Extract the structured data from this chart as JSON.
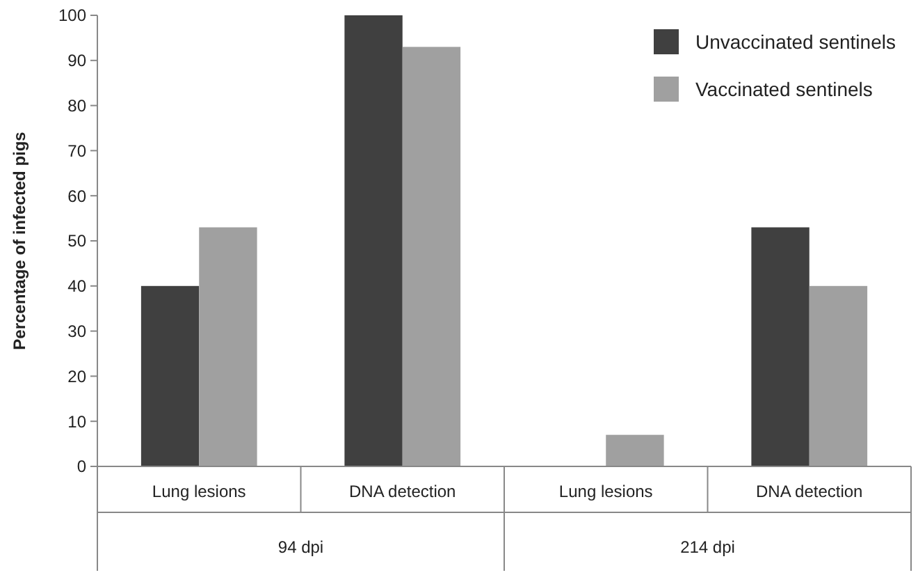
{
  "chart_data": {
    "type": "bar",
    "ylabel": "Percentage of infected pigs",
    "categories": [
      "Lung lesions",
      "DNA detection",
      "Lung lesions",
      "DNA detection"
    ],
    "series": [
      {
        "name": "Unvaccinated sentinels",
        "color": "#404040",
        "values": [
          40,
          100,
          0,
          53
        ]
      },
      {
        "name": "Vaccinated sentinels",
        "color": "#a0a0a0",
        "values": [
          53,
          93,
          7,
          40
        ]
      }
    ],
    "ylim": [
      0,
      100
    ],
    "yticks": [
      0,
      10,
      20,
      30,
      40,
      50,
      60,
      70,
      80,
      90,
      100
    ],
    "grid": false,
    "legend": "top right",
    "annotations": [
      "94 dpi",
      "214 dpi"
    ]
  }
}
